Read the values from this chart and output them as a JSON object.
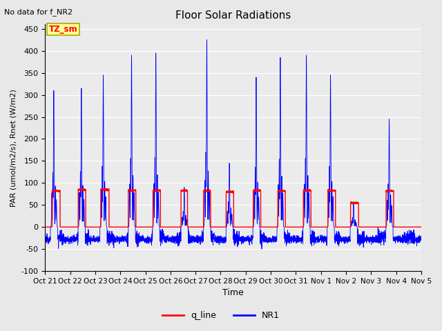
{
  "title": "Floor Solar Radiations",
  "xlabel": "Time",
  "ylabel": "PAR (umol/m2/s), Rnet (W/m2)",
  "ylim": [
    -100,
    460
  ],
  "yticks": [
    -100,
    -50,
    0,
    50,
    100,
    150,
    200,
    250,
    300,
    350,
    400,
    450
  ],
  "no_data_text": "No data for f_NR2",
  "tz_label": "TZ_sm",
  "legend_labels": [
    "q_line",
    "NR1"
  ],
  "q_line_color": "#FF0000",
  "nr1_color": "#0000FF",
  "background_color": "#E8E8E8",
  "plot_bg_color": "#EBEBEB",
  "title_fontsize": 11,
  "xtick_labels": [
    "Oct 21",
    "Oct 22",
    "Oct 23",
    "Oct 24",
    "Oct 25",
    "Oct 26",
    "Oct 27",
    "Oct 28",
    "Oct 29",
    "Oct 30",
    "Oct 31",
    "Nov 1",
    "Nov 2",
    "Nov 3",
    "Nov 4",
    "Nov 5"
  ],
  "spike_peaks_nr1": [
    310,
    315,
    345,
    390,
    395,
    90,
    425,
    145,
    340,
    385,
    390,
    345,
    55,
    245
  ],
  "q_peaks": [
    82,
    85,
    85,
    83,
    83,
    83,
    82,
    80,
    83,
    82,
    83,
    83,
    55,
    82
  ],
  "spike_day_positions": [
    0.35,
    1.45,
    2.32,
    3.45,
    4.42,
    5.55,
    6.45,
    7.35,
    8.42,
    9.38,
    10.42,
    11.38,
    12.3,
    13.72
  ],
  "q_day_starts": [
    0.28,
    1.32,
    2.22,
    3.32,
    4.3,
    5.42,
    6.32,
    7.22,
    8.3,
    9.28,
    10.3,
    11.28,
    12.18,
    13.6
  ],
  "q_day_ends": [
    0.6,
    1.62,
    2.55,
    3.62,
    4.6,
    5.68,
    6.6,
    7.52,
    8.6,
    9.58,
    10.6,
    11.58,
    12.5,
    13.9
  ]
}
